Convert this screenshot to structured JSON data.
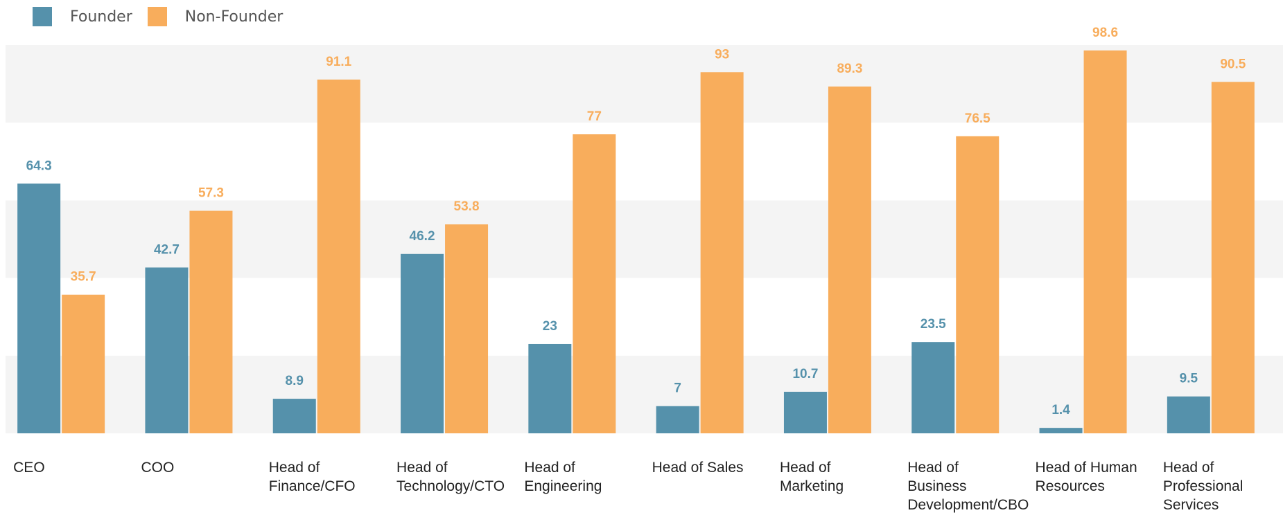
{
  "chart_data": {
    "type": "bar",
    "categories": [
      [
        "CEO"
      ],
      [
        "COO"
      ],
      [
        "Head of",
        "Finance/CFO"
      ],
      [
        "Head of",
        "Technology/CTO"
      ],
      [
        "Head of",
        "Engineering"
      ],
      [
        "Head of Sales"
      ],
      [
        "Head of",
        "Marketing"
      ],
      [
        "Head of",
        "Business",
        "Development/CBO"
      ],
      [
        "Head of Human",
        "Resources"
      ],
      [
        "Head of",
        "Professional",
        "Services"
      ]
    ],
    "series": [
      {
        "name": "Founder",
        "color": "#5591ab",
        "values": [
          64.3,
          42.7,
          8.9,
          46.2,
          23,
          7,
          10.7,
          23.5,
          1.4,
          9.5
        ]
      },
      {
        "name": "Non-Founder",
        "color": "#f8ad5c",
        "values": [
          35.7,
          57.3,
          91.1,
          53.8,
          77,
          93,
          89.3,
          76.5,
          98.6,
          90.5
        ]
      }
    ],
    "ylim": [
      0,
      100
    ],
    "grid": "alternating-bands",
    "legend_position": "top-left",
    "data_labels": true
  }
}
